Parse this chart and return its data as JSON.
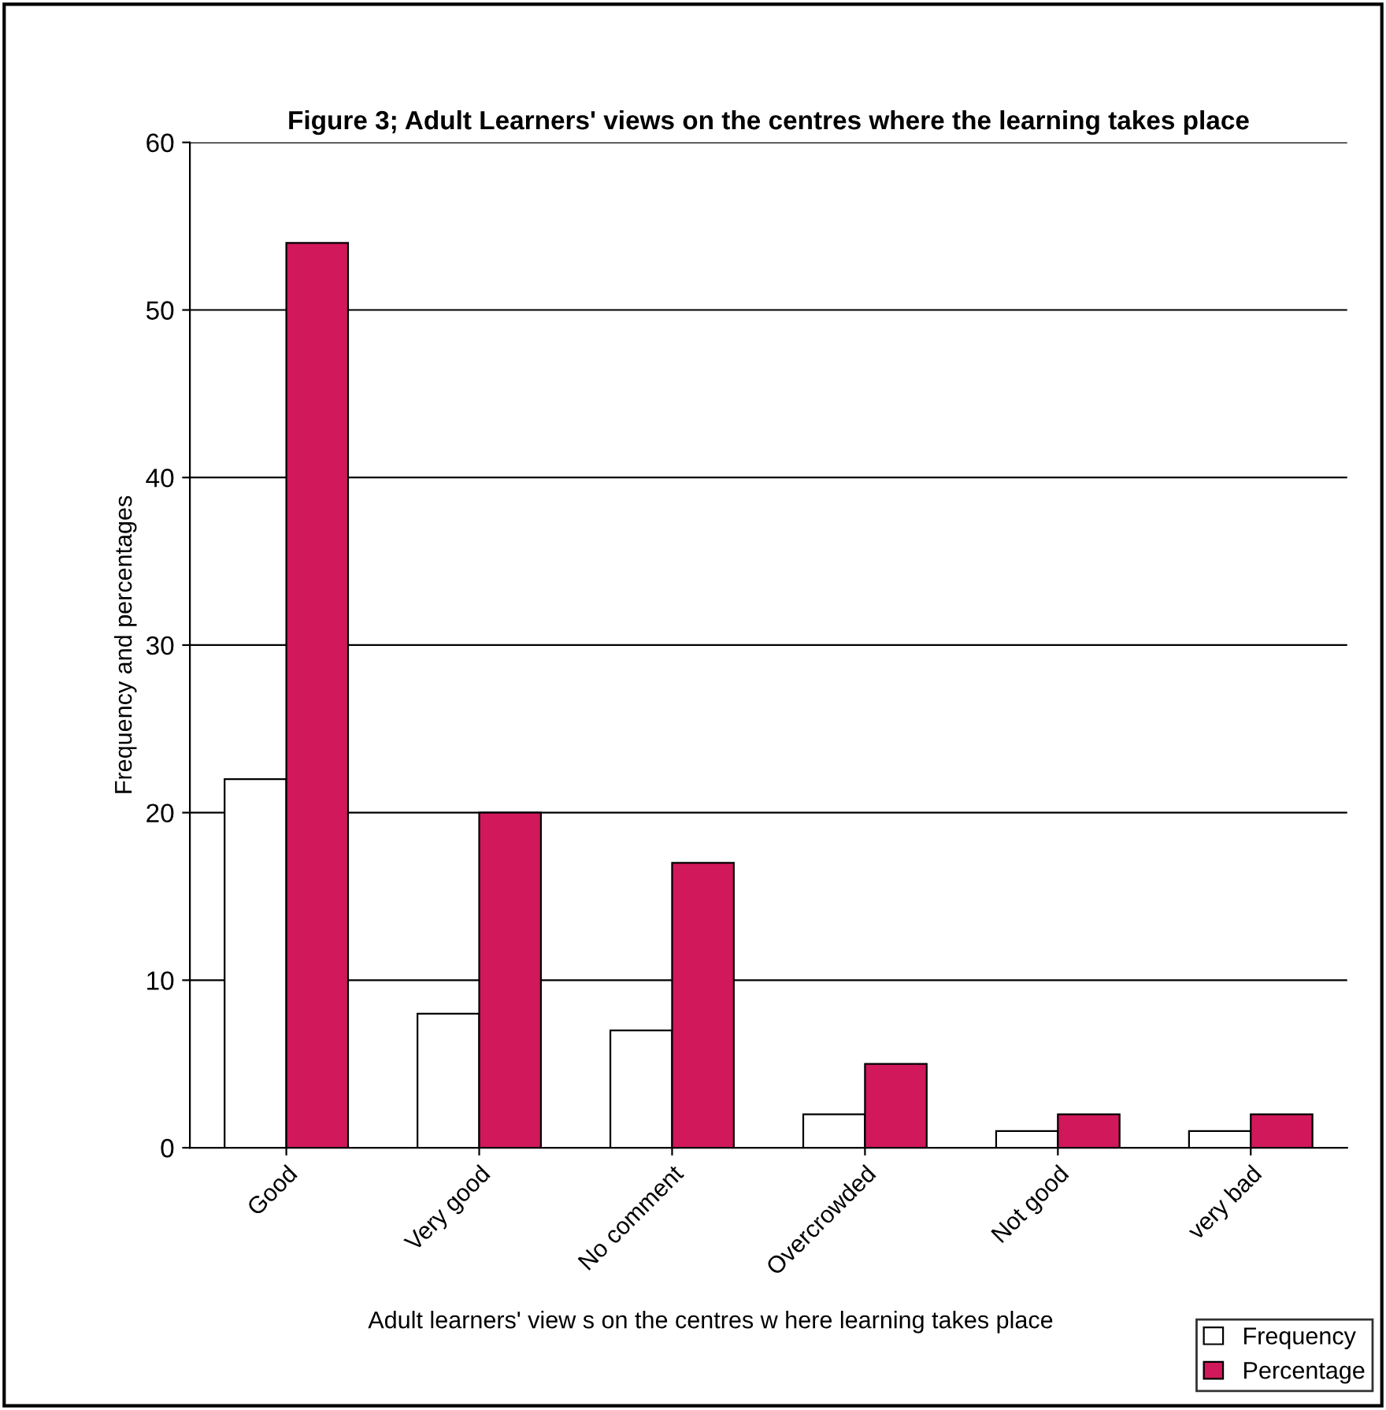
{
  "chart_data": {
    "type": "bar",
    "title": "Figure 3; Adult Learners' views on the centres where the learning takes place",
    "xlabel": "Adult learners' view s on the centres w here learning takes place",
    "ylabel": "Frequency and percentages",
    "categories": [
      "Good",
      "Very good",
      "No comment",
      "Overcrowded",
      "Not good",
      "very bad"
    ],
    "series": [
      {
        "name": "Frequency",
        "color": "#ffffff",
        "values": [
          22,
          8,
          7,
          2,
          1,
          1
        ]
      },
      {
        "name": "Percentage",
        "color": "#d0185a",
        "values": [
          54,
          20,
          17,
          5,
          2,
          2
        ]
      }
    ],
    "ylim": [
      0,
      60
    ],
    "yticks": [
      0,
      10,
      20,
      30,
      40,
      50,
      60
    ],
    "grid": "y",
    "legend": "bottom right"
  }
}
